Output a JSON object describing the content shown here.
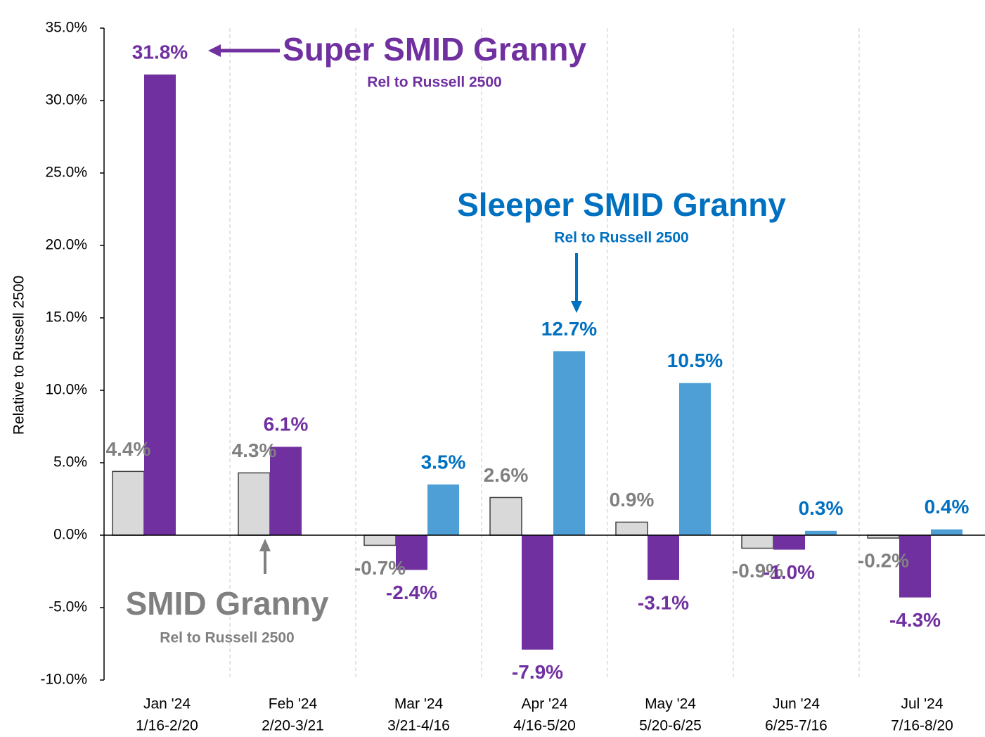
{
  "chart_data": {
    "type": "bar",
    "y_label": "Relative to Russell 2500",
    "categories": [
      [
        "Jan '24",
        "1/16-2/20"
      ],
      [
        "Feb '24",
        "2/20-3/21"
      ],
      [
        "Mar '24",
        "3/21-4/16"
      ],
      [
        "Apr '24",
        "4/16-5/20"
      ],
      [
        "May '24",
        "5/20-6/25"
      ],
      [
        "Jun '24",
        "6/25-7/16"
      ],
      [
        "Jul '24",
        "7/16-8/20"
      ]
    ],
    "series": [
      {
        "name": "SMID Granny",
        "note": "Rel to Russell 2500",
        "color": "#d9d9d9",
        "label_color": "#808080",
        "values": [
          4.4,
          4.3,
          -0.7,
          2.6,
          0.9,
          -0.9,
          -0.2
        ],
        "value_labels": [
          "4.4%",
          "4.3%",
          "-0.7%",
          "2.6%",
          "0.9%",
          "-0.9%",
          "-0.2%"
        ]
      },
      {
        "name": "Super SMID Granny",
        "note": "Rel to Russell 2500",
        "color": "#7030a0",
        "label_color": "#7030a0",
        "values": [
          31.8,
          6.1,
          -2.4,
          -7.9,
          -3.1,
          -1.0,
          -4.3
        ],
        "value_labels": [
          "31.8%",
          "6.1%",
          "-2.4%",
          "-7.9%",
          "-3.1%",
          "-1.0%",
          "-4.3%"
        ]
      },
      {
        "name": "Sleeper SMID Granny",
        "note": "Rel to Russell 2500",
        "color": "#4e9fd6",
        "label_color": "#0070c0",
        "values": [
          null,
          null,
          3.5,
          12.7,
          10.5,
          0.3,
          0.4
        ],
        "value_labels": [
          null,
          null,
          "3.5%",
          "12.7%",
          "10.5%",
          "0.3%",
          "0.4%"
        ]
      }
    ],
    "ylim": [
      -10,
      35
    ],
    "yticks": [
      {
        "value": -10,
        "label": "-10.0%"
      },
      {
        "value": -5,
        "label": "-5.0%"
      },
      {
        "value": 0,
        "label": "0.0%"
      },
      {
        "value": 5,
        "label": "5.0%"
      },
      {
        "value": 10,
        "label": "10.0%"
      },
      {
        "value": 15,
        "label": "15.0%"
      },
      {
        "value": 20,
        "label": "20.0%"
      },
      {
        "value": 25,
        "label": "25.0%"
      },
      {
        "value": 30,
        "label": "30.0%"
      },
      {
        "value": 35,
        "label": "35.0%"
      }
    ],
    "grid": "x"
  }
}
